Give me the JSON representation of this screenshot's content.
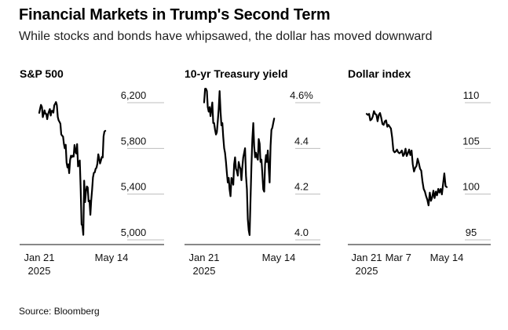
{
  "header": {
    "title": "Financial Markets in Trump's Second Term",
    "subtitle": "While stocks and bonds have whipsawed, the dollar has moved downward"
  },
  "source": "Source: Bloomberg",
  "chart_data": [
    {
      "type": "line",
      "title": "S&P 500",
      "xlabel": "",
      "ylabel": "",
      "x_ticks": [
        "Jan 21\n2025",
        "May 14"
      ],
      "x_tick_values": [
        0,
        82
      ],
      "x_range": [
        0,
        82
      ],
      "y_ticks": [
        "6,200",
        "5,800",
        "5,400",
        "5,000"
      ],
      "y_tick_values": [
        6200,
        5800,
        5400,
        5000
      ],
      "ylim": [
        4920,
        6220
      ],
      "grid": "horizontal",
      "series": [
        {
          "color": "#000000",
          "points": [
            [
              0,
              6049
            ],
            [
              1,
              6087
            ],
            [
              2,
              6119
            ],
            [
              3,
              6101
            ],
            [
              4,
              6012
            ],
            [
              5,
              6039
            ],
            [
              6,
              6071
            ],
            [
              7,
              6041
            ],
            [
              8,
              6040
            ],
            [
              9,
              5994
            ],
            [
              10,
              6037
            ],
            [
              11,
              6061
            ],
            [
              12,
              6083
            ],
            [
              13,
              6026
            ],
            [
              14,
              6066
            ],
            [
              15,
              6068
            ],
            [
              16,
              6051
            ],
            [
              17,
              6115
            ],
            [
              18,
              6129
            ],
            [
              19,
              6144
            ],
            [
              20,
              6117
            ],
            [
              21,
              6013
            ],
            [
              22,
              5983
            ],
            [
              23,
              5970
            ],
            [
              24,
              5955
            ],
            [
              25,
              5861
            ],
            [
              26,
              5849
            ],
            [
              27,
              5842
            ],
            [
              28,
              5778
            ],
            [
              29,
              5739
            ],
            [
              30,
              5770
            ],
            [
              31,
              5614
            ],
            [
              32,
              5572
            ],
            [
              33,
              5599
            ],
            [
              34,
              5522
            ],
            [
              35,
              5638
            ],
            [
              36,
              5675
            ],
            [
              37,
              5662
            ],
            [
              38,
              5675
            ],
            [
              39,
              5667
            ],
            [
              40,
              5768
            ],
            [
              41,
              5712
            ],
            [
              42,
              5694
            ],
            [
              43,
              5776
            ],
            [
              44,
              5581
            ],
            [
              45,
              5612
            ],
            [
              46,
              5633
            ],
            [
              47,
              5396
            ],
            [
              48,
              5074
            ],
            [
              49,
              5062
            ],
            [
              50,
              4982
            ],
            [
              51,
              5456
            ],
            [
              52,
              5268
            ],
            [
              53,
              5363
            ],
            [
              54,
              5406
            ],
            [
              55,
              5397
            ],
            [
              56,
              5275
            ],
            [
              57,
              5282
            ],
            [
              58,
              5158
            ],
            [
              59,
              5287
            ],
            [
              60,
              5376
            ],
            [
              61,
              5484
            ],
            [
              62,
              5525
            ],
            [
              63,
              5529
            ],
            [
              64,
              5560
            ],
            [
              65,
              5569
            ],
            [
              66,
              5604
            ],
            [
              67,
              5687
            ],
            [
              68,
              5650
            ],
            [
              69,
              5606
            ],
            [
              70,
              5631
            ],
            [
              71,
              5664
            ],
            [
              72,
              5659
            ],
            [
              73,
              5844
            ],
            [
              74,
              5886
            ],
            [
              75,
              5892
            ]
          ]
        }
      ]
    },
    {
      "type": "line",
      "title": "10-yr Treasury yield",
      "xlabel": "",
      "ylabel": "",
      "x_ticks": [
        "Jan 21\n2025",
        "May 14"
      ],
      "x_tick_values": [
        0,
        82
      ],
      "x_range": [
        0,
        82
      ],
      "y_ticks": [
        "4.6%",
        "4.4",
        "4.2",
        "4.0"
      ],
      "y_tick_values": [
        4.6,
        4.4,
        4.2,
        4.0
      ],
      "ylim": [
        3.96,
        4.65
      ],
      "grid": "horizontal",
      "series": [
        {
          "color": "#000000",
          "points": [
            [
              0,
              4.57
            ],
            [
              1,
              4.63
            ],
            [
              2,
              4.63
            ],
            [
              3,
              4.62
            ],
            [
              4,
              4.55
            ],
            [
              5,
              4.53
            ],
            [
              6,
              4.55
            ],
            [
              7,
              4.51
            ],
            [
              8,
              4.54
            ],
            [
              9,
              4.57
            ],
            [
              10,
              4.48
            ],
            [
              11,
              4.48
            ],
            [
              12,
              4.45
            ],
            [
              13,
              4.43
            ],
            [
              14,
              4.44
            ],
            [
              15,
              4.49
            ],
            [
              16,
              4.54
            ],
            [
              17,
              4.62
            ],
            [
              18,
              4.53
            ],
            [
              19,
              4.47
            ],
            [
              20,
              4.48
            ],
            [
              21,
              4.42
            ],
            [
              22,
              4.37
            ],
            [
              23,
              4.35
            ],
            [
              24,
              4.31
            ],
            [
              25,
              4.26
            ],
            [
              26,
              4.22
            ],
            [
              27,
              4.24
            ],
            [
              28,
              4.19
            ],
            [
              29,
              4.16
            ],
            [
              30,
              4.24
            ],
            [
              31,
              4.23
            ],
            [
              32,
              4.21
            ],
            [
              33,
              4.3
            ],
            [
              34,
              4.33
            ],
            [
              35,
              4.28
            ],
            [
              36,
              4.27
            ],
            [
              37,
              4.25
            ],
            [
              38,
              4.31
            ],
            [
              39,
              4.29
            ],
            [
              40,
              4.28
            ],
            [
              41,
              4.23
            ],
            [
              42,
              4.29
            ],
            [
              43,
              4.33
            ],
            [
              44,
              4.35
            ],
            [
              45,
              4.37
            ],
            [
              46,
              4.25
            ],
            [
              47,
              4.19
            ],
            [
              48,
              4.06
            ],
            [
              49,
              4.01
            ],
            [
              50,
              3.99
            ],
            [
              51,
              4.15
            ],
            [
              52,
              4.29
            ],
            [
              53,
              4.41
            ],
            [
              54,
              4.48
            ],
            [
              55,
              4.38
            ],
            [
              56,
              4.33
            ],
            [
              57,
              4.35
            ],
            [
              58,
              4.33
            ],
            [
              59,
              4.32
            ],
            [
              60,
              4.41
            ],
            [
              61,
              4.39
            ],
            [
              62,
              4.31
            ],
            [
              63,
              4.32
            ],
            [
              64,
              4.26
            ],
            [
              65,
              4.19
            ],
            [
              66,
              4.18
            ],
            [
              67,
              4.3
            ],
            [
              68,
              4.34
            ],
            [
              69,
              4.31
            ],
            [
              70,
              4.36
            ],
            [
              71,
              4.28
            ],
            [
              72,
              4.22
            ],
            [
              73,
              4.38
            ],
            [
              74,
              4.45
            ],
            [
              75,
              4.46
            ],
            [
              76,
              4.48
            ],
            [
              77,
              4.5
            ]
          ]
        }
      ]
    },
    {
      "type": "line",
      "title": "Dollar index",
      "xlabel": "",
      "ylabel": "",
      "x_ticks": [
        "Jan 21\n2025",
        "Mar 7",
        "May 14"
      ],
      "x_tick_values": [
        0,
        26,
        66
      ],
      "x_range": [
        0,
        66
      ],
      "y_ticks": [
        "110",
        "105",
        "100",
        "95"
      ],
      "y_tick_values": [
        110,
        105,
        100,
        95
      ],
      "ylim": [
        94.3,
        110.8
      ],
      "grid": "horizontal",
      "series": [
        {
          "color": "#000000",
          "points": [
            [
              0,
              108.0
            ],
            [
              1,
              107.9
            ],
            [
              2,
              108.0
            ],
            [
              3,
              107.3
            ],
            [
              4,
              107.4
            ],
            [
              5,
              107.7
            ],
            [
              6,
              108.3
            ],
            [
              7,
              108.0
            ],
            [
              8,
              107.9
            ],
            [
              9,
              107.2
            ],
            [
              10,
              107.9
            ],
            [
              11,
              108.1
            ],
            [
              12,
              107.6
            ],
            [
              13,
              106.9
            ],
            [
              14,
              106.8
            ],
            [
              15,
              107.2
            ],
            [
              16,
              107.3
            ],
            [
              17,
              106.6
            ],
            [
              18,
              106.8
            ],
            [
              19,
              106.6
            ],
            [
              20,
              106.4
            ],
            [
              21,
              105.4
            ],
            [
              22,
              104.0
            ],
            [
              23,
              103.8
            ],
            [
              24,
              103.9
            ],
            [
              25,
              104.1
            ],
            [
              26,
              103.8
            ],
            [
              27,
              103.7
            ],
            [
              28,
              103.8
            ],
            [
              29,
              104.0
            ],
            [
              30,
              103.4
            ],
            [
              31,
              103.6
            ],
            [
              32,
              104.2
            ],
            [
              33,
              103.4
            ],
            [
              34,
              103.7
            ],
            [
              35,
              104.1
            ],
            [
              36,
              103.5
            ],
            [
              37,
              104.0
            ],
            [
              38,
              102.5
            ],
            [
              39,
              101.7
            ],
            [
              40,
              102.1
            ],
            [
              41,
              102.3
            ],
            [
              42,
              103.1
            ],
            [
              43,
              102.6
            ],
            [
              44,
              102.0
            ],
            [
              45,
              101.8
            ],
            [
              46,
              100.6
            ],
            [
              47,
              99.8
            ],
            [
              48,
              99.5
            ],
            [
              49,
              99.0
            ],
            [
              50,
              98.6
            ],
            [
              51,
              98.0
            ],
            [
              52,
              99.4
            ],
            [
              53,
              98.5
            ],
            [
              54,
              98.9
            ],
            [
              55,
              99.6
            ],
            [
              56,
              98.8
            ],
            [
              57,
              99.5
            ],
            [
              58,
              99.1
            ],
            [
              59,
              99.8
            ],
            [
              60,
              99.4
            ],
            [
              61,
              99.8
            ],
            [
              62,
              99.2
            ],
            [
              63,
              100.4
            ],
            [
              64,
              101.5
            ],
            [
              65,
              100.1
            ],
            [
              66,
              100.0
            ]
          ]
        }
      ]
    }
  ]
}
